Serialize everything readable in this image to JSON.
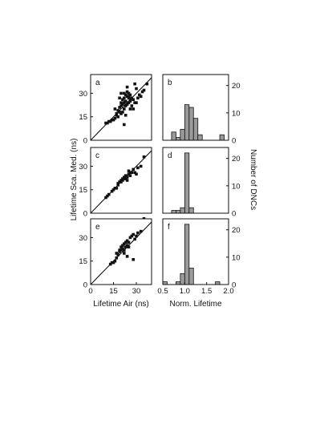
{
  "figure": {
    "y_left_title": "Lifetime Sca. Med. (ns)",
    "y_right_title": "Number of DNCs",
    "x_left_title": "Lifetime Air (ns)",
    "x_right_title": "Norm. Lifetime"
  },
  "chart_data": [
    {
      "panel": "a",
      "type": "scatter",
      "label": "a",
      "xlim": [
        0,
        40
      ],
      "ylim": [
        0,
        42
      ],
      "xticks": [],
      "yticks": [
        "0",
        "15",
        "30"
      ],
      "identity_line": true,
      "x": [
        10,
        11,
        12,
        13,
        14,
        15,
        16,
        17,
        16,
        18,
        19,
        20,
        20,
        21,
        21,
        22,
        22,
        23,
        23,
        24,
        24,
        25,
        25,
        26,
        26,
        27,
        22,
        23,
        24,
        25,
        21,
        22,
        23,
        19,
        20,
        24,
        26,
        28,
        29,
        30,
        30,
        33,
        35,
        37,
        17,
        18,
        19,
        20,
        26,
        27,
        29,
        31,
        32,
        34,
        22,
        25,
        28
      ],
      "y": [
        11,
        11,
        12,
        12,
        13,
        13,
        14,
        17,
        20,
        19,
        21,
        22,
        24,
        23,
        26,
        24,
        27,
        22,
        25,
        23,
        28,
        24,
        27,
        26,
        29,
        27,
        30,
        29,
        31,
        30,
        18,
        20,
        16,
        27,
        30,
        34,
        25,
        20,
        36,
        33,
        24,
        28,
        32,
        36,
        16,
        15,
        18,
        17,
        20,
        22,
        24,
        27,
        29,
        31,
        10,
        28,
        26
      ]
    },
    {
      "panel": "b",
      "type": "bar",
      "label": "b",
      "xlim": [
        0.5,
        2.0
      ],
      "ylim": [
        0,
        24
      ],
      "yticks": [
        "0",
        "10",
        "20"
      ],
      "bins": [
        0.7,
        0.8,
        0.9,
        1.0,
        1.1,
        1.2,
        1.3,
        1.8
      ],
      "values": [
        3,
        1,
        4,
        13,
        12,
        8,
        2,
        2
      ]
    },
    {
      "panel": "c",
      "type": "scatter",
      "label": "c",
      "xlim": [
        0,
        40
      ],
      "ylim": [
        0,
        42
      ],
      "xticks": [],
      "yticks": [
        "0",
        "15",
        "30"
      ],
      "identity_line": true,
      "x": [
        10,
        11,
        12,
        14,
        15,
        16,
        17,
        18,
        18,
        19,
        20,
        20,
        21,
        21,
        22,
        22,
        23,
        23,
        24,
        25,
        25,
        26,
        27,
        28,
        29,
        30,
        31,
        33,
        35,
        26,
        24
      ],
      "y": [
        10,
        11,
        12,
        14,
        15,
        16,
        16,
        18,
        19,
        20,
        20,
        21,
        21,
        22,
        22,
        23,
        22,
        24,
        23,
        25,
        27,
        26,
        26,
        28,
        26,
        25,
        29,
        30,
        36,
        24,
        21
      ]
    },
    {
      "panel": "d",
      "type": "bar",
      "label": "d",
      "xlim": [
        0.5,
        2.0
      ],
      "ylim": [
        0,
        24
      ],
      "yticks": [
        "0",
        "10",
        "20"
      ],
      "bins": [
        0.7,
        0.8,
        0.9,
        1.0,
        1.1
      ],
      "values": [
        1,
        1,
        2,
        22,
        2
      ]
    },
    {
      "panel": "e",
      "type": "scatter",
      "label": "e",
      "xlim": [
        0,
        40
      ],
      "ylim": [
        0,
        42
      ],
      "xticks": [
        "0",
        "15",
        "30"
      ],
      "yticks": [
        "0",
        "15",
        "30"
      ],
      "identity_line": true,
      "x": [
        13,
        14,
        15,
        16,
        17,
        17,
        18,
        19,
        19,
        20,
        20,
        21,
        21,
        22,
        22,
        23,
        23,
        24,
        24,
        25,
        25,
        26,
        27,
        28,
        29,
        30,
        31,
        33,
        35,
        22,
        24,
        28
      ],
      "y": [
        13,
        14,
        14,
        15,
        17,
        20,
        19,
        21,
        22,
        22,
        24,
        23,
        25,
        22,
        26,
        24,
        27,
        25,
        28,
        24,
        27,
        30,
        31,
        32,
        29,
        31,
        33,
        34,
        43,
        20,
        18,
        16
      ]
    },
    {
      "panel": "f",
      "type": "bar",
      "label": "f",
      "xlim": [
        0.5,
        2.0
      ],
      "ylim": [
        0,
        24
      ],
      "xticks": [
        "0.5",
        "1.0",
        "1.5",
        "2.0"
      ],
      "yticks": [
        "0",
        "10",
        "20"
      ],
      "bins": [
        0.5,
        0.8,
        0.9,
        1.0,
        1.1,
        1.7
      ],
      "values": [
        1,
        1,
        4,
        22,
        6,
        1
      ]
    }
  ]
}
